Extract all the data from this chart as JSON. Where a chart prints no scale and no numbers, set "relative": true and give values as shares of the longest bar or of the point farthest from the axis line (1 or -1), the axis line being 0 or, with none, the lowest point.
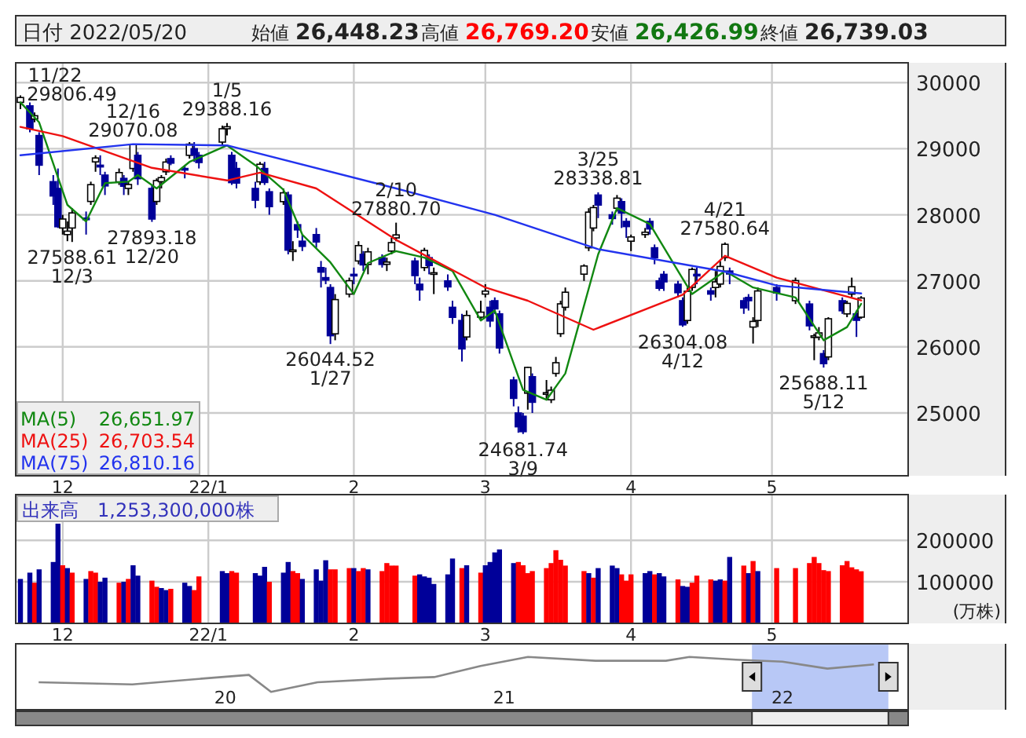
{
  "chart_data": [
    {
      "type": "candlestick",
      "title": "日付 2022/05/20",
      "annotations": [
        "始値",
        "26,448.23",
        "高値",
        "26,769.20",
        "安値",
        "26,426.99",
        "終値",
        "26,739.03",
        "26,651.97",
        "26,703.54",
        "26,810.16",
        {
          "text": "11/22",
          "x": "2021-11-22",
          "y": 29806.49
        },
        {
          "text": "29806.49",
          "x": "2021-11-22",
          "y": 29806.49
        },
        {
          "text": "27588.61",
          "x": "2021-12-03",
          "y": 27588.61
        },
        {
          "text": "12/3",
          "x": "2021-12-03",
          "y": 27588.61
        },
        {
          "text": "12/16",
          "x": "2021-12-16",
          "y": 29070.08
        },
        {
          "text": "29070.08",
          "x": "2021-12-16",
          "y": 29070.08
        },
        {
          "text": "27893.18",
          "x": "2021-12-20",
          "y": 27893.18
        },
        {
          "text": "12/20",
          "x": "2021-12-20",
          "y": 27893.18
        },
        {
          "text": "1/5",
          "x": "2022-01-05",
          "y": 29388.16
        },
        {
          "text": "29388.16",
          "x": "2022-01-05",
          "y": 29388.16
        },
        {
          "text": "26044.52",
          "x": "2022-01-27",
          "y": 26044.52
        },
        {
          "text": "1/27",
          "x": "2022-01-27",
          "y": 26044.52
        },
        {
          "text": "2/10",
          "x": "2022-02-10",
          "y": 27880.7
        },
        {
          "text": "27880.70",
          "x": "2022-02-10",
          "y": 27880.7
        },
        {
          "text": "24681.74",
          "x": "2022-03-09",
          "y": 24681.74
        },
        {
          "text": "3/9",
          "x": "2022-03-09",
          "y": 24681.74
        },
        {
          "text": "3/25",
          "x": "2022-03-25",
          "y": 28338.81
        },
        {
          "text": "28338.81",
          "x": "2022-03-25",
          "y": 28338.81
        },
        {
          "text": "26304.08",
          "x": "2022-04-12",
          "y": 26304.08
        },
        {
          "text": "4/12",
          "x": "2022-04-12",
          "y": 26304.08
        },
        {
          "text": "4/21",
          "x": "2022-04-21",
          "y": 27580.64
        },
        {
          "text": "27580.64",
          "x": "2022-04-21",
          "y": 27580.64
        },
        {
          "text": "25688.11",
          "x": "2022-05-12",
          "y": 25688.11
        },
        {
          "text": "5/12",
          "x": "2022-05-12",
          "y": 25688.11
        }
      ],
      "x": [
        "2021-11-22",
        "2021-11-24",
        "2021-11-25",
        "2021-11-26",
        "2021-11-29",
        "2021-11-30",
        "2021-12-01",
        "2021-12-02",
        "2021-12-03",
        "2021-12-06",
        "2021-12-07",
        "2021-12-08",
        "2021-12-09",
        "2021-12-10",
        "2021-12-13",
        "2021-12-14",
        "2021-12-15",
        "2021-12-16",
        "2021-12-17",
        "2021-12-20",
        "2021-12-21",
        "2021-12-22",
        "2021-12-23",
        "2021-12-24",
        "2021-12-27",
        "2021-12-28",
        "2021-12-29",
        "2021-12-30",
        "2022-01-04",
        "2022-01-05",
        "2022-01-06",
        "2022-01-07",
        "2022-01-11",
        "2022-01-12",
        "2022-01-13",
        "2022-01-14",
        "2022-01-17",
        "2022-01-18",
        "2022-01-19",
        "2022-01-20",
        "2022-01-21",
        "2022-01-24",
        "2022-01-25",
        "2022-01-26",
        "2022-01-27",
        "2022-01-28",
        "2022-01-31",
        "2022-02-01",
        "2022-02-02",
        "2022-02-03",
        "2022-02-04",
        "2022-02-07",
        "2022-02-08",
        "2022-02-09",
        "2022-02-10",
        "2022-02-14",
        "2022-02-15",
        "2022-02-16",
        "2022-02-17",
        "2022-02-18",
        "2022-02-21",
        "2022-02-22",
        "2022-02-24",
        "2022-02-25",
        "2022-02-28",
        "2022-03-01",
        "2022-03-02",
        "2022-03-03",
        "2022-03-04",
        "2022-03-07",
        "2022-03-08",
        "2022-03-09",
        "2022-03-10",
        "2022-03-11",
        "2022-03-14",
        "2022-03-15",
        "2022-03-16",
        "2022-03-17",
        "2022-03-18",
        "2022-03-22",
        "2022-03-23",
        "2022-03-24",
        "2022-03-25",
        "2022-03-28",
        "2022-03-29",
        "2022-03-30",
        "2022-03-31",
        "2022-04-01",
        "2022-04-04",
        "2022-04-05",
        "2022-04-06",
        "2022-04-07",
        "2022-04-08",
        "2022-04-11",
        "2022-04-12",
        "2022-04-13",
        "2022-04-14",
        "2022-04-15",
        "2022-04-18",
        "2022-04-19",
        "2022-04-20",
        "2022-04-21",
        "2022-04-22",
        "2022-04-25",
        "2022-04-26",
        "2022-04-27",
        "2022-04-28",
        "2022-05-02",
        "2022-05-06",
        "2022-05-09",
        "2022-05-10",
        "2022-05-11",
        "2022-05-12",
        "2022-05-13",
        "2022-05-16",
        "2022-05-17",
        "2022-05-18",
        "2022-05-19",
        "2022-05-20"
      ],
      "ohlc": [
        [
          29700,
          29806.49,
          29600,
          29774
        ],
        [
          29650,
          29700,
          29250,
          29302
        ],
        [
          29450,
          29550,
          29400,
          29499
        ],
        [
          29200,
          29250,
          28600,
          28751
        ],
        [
          28500,
          28600,
          28150,
          28283
        ],
        [
          28400,
          28700,
          27800,
          27821
        ],
        [
          27800,
          28000,
          27700,
          27935
        ],
        [
          27700,
          27900,
          27600,
          27753
        ],
        [
          27800,
          28100,
          27588.61,
          28029
        ],
        [
          27950,
          28050,
          27700,
          27927
        ],
        [
          28200,
          28500,
          28150,
          28455
        ],
        [
          28800,
          28900,
          28650,
          28860
        ],
        [
          28750,
          28900,
          28600,
          28725
        ],
        [
          28600,
          28650,
          28300,
          28437
        ],
        [
          28500,
          28700,
          28450,
          28640
        ],
        [
          28550,
          28600,
          28300,
          28432
        ],
        [
          28400,
          28500,
          28300,
          28459
        ],
        [
          28700,
          29070.08,
          28650,
          29066
        ],
        [
          28900,
          28950,
          28450,
          28545
        ],
        [
          28400,
          28450,
          27893.18,
          27937
        ],
        [
          28200,
          28550,
          28150,
          28517
        ],
        [
          28500,
          28600,
          28400,
          28562
        ],
        [
          28650,
          28850,
          28600,
          28798
        ],
        [
          28850,
          28900,
          28750,
          28782
        ],
        [
          28700,
          28750,
          28550,
          28676
        ],
        [
          28900,
          29100,
          28850,
          29069
        ],
        [
          29000,
          29100,
          28800,
          28906
        ],
        [
          28900,
          28950,
          28700,
          28791
        ],
        [
          29100,
          29350,
          29050,
          29301
        ],
        [
          29300,
          29388.16,
          29200,
          29332
        ],
        [
          28900,
          28950,
          28450,
          28487
        ],
        [
          28700,
          28800,
          28400,
          28478
        ],
        [
          28400,
          28500,
          28100,
          28222
        ],
        [
          28500,
          28800,
          28450,
          28765
        ],
        [
          28700,
          28800,
          28450,
          28489
        ],
        [
          28350,
          28400,
          28000,
          28124
        ],
        [
          28200,
          28400,
          28150,
          28333
        ],
        [
          28300,
          28350,
          27400,
          27467
        ],
        [
          27450,
          27600,
          27300,
          27467
        ],
        [
          27850,
          27900,
          27650,
          27772
        ],
        [
          27600,
          27700,
          27450,
          27522
        ],
        [
          27700,
          27800,
          27500,
          27588
        ],
        [
          27200,
          27300,
          26900,
          27131
        ],
        [
          27050,
          27200,
          26950,
          27011
        ],
        [
          26900,
          26950,
          26044.52,
          26170
        ],
        [
          26200,
          26800,
          26100,
          26717
        ],
        [
          26800,
          27050,
          26750,
          27001
        ],
        [
          27100,
          27200,
          26950,
          27078
        ],
        [
          27300,
          27600,
          27250,
          27533
        ],
        [
          27400,
          27450,
          27150,
          27241
        ],
        [
          27250,
          27500,
          27100,
          27439
        ],
        [
          27350,
          27400,
          27200,
          27248
        ],
        [
          27250,
          27350,
          27150,
          27284
        ],
        [
          27450,
          27650,
          27400,
          27579
        ],
        [
          27650,
          27880.7,
          27600,
          27696
        ],
        [
          27300,
          27350,
          26950,
          27079
        ],
        [
          26950,
          27050,
          26700,
          26865
        ],
        [
          27200,
          27500,
          27150,
          27460
        ],
        [
          27350,
          27400,
          27100,
          27232
        ],
        [
          27100,
          27200,
          26800,
          27122
        ],
        [
          27000,
          27100,
          26850,
          26910
        ],
        [
          26600,
          26700,
          26350,
          26449
        ],
        [
          26400,
          26500,
          25780,
          25970
        ],
        [
          26150,
          26550,
          26100,
          26476
        ],
        [
          26450,
          26700,
          26400,
          26526
        ],
        [
          26800,
          26950,
          26750,
          26844
        ],
        [
          26600,
          26700,
          26300,
          26393
        ],
        [
          26700,
          26750,
          26500,
          26577
        ],
        [
          26500,
          26550,
          25900,
          25985
        ],
        [
          25500,
          25550,
          25100,
          25221
        ],
        [
          25000,
          25100,
          24700,
          24790
        ],
        [
          24950,
          25000,
          24681.74,
          24717
        ],
        [
          25300,
          25700,
          25050,
          25690
        ],
        [
          25550,
          25600,
          25000,
          25162
        ],
        [
          25300,
          25500,
          25200,
          25307
        ],
        [
          25200,
          25400,
          25150,
          25346
        ],
        [
          25600,
          25850,
          25550,
          25762
        ],
        [
          26200,
          26700,
          26150,
          26652
        ],
        [
          26600,
          26900,
          26550,
          26827
        ],
        [
          27100,
          27250,
          27000,
          27224
        ],
        [
          27500,
          28100,
          27450,
          28040
        ],
        [
          27800,
          28150,
          27750,
          28110
        ],
        [
          28300,
          28338.81,
          27950,
          28149
        ],
        [
          28000,
          28050,
          27850,
          27943
        ],
        [
          28100,
          28300,
          28050,
          28252
        ],
        [
          28200,
          28250,
          27800,
          28027
        ],
        [
          27900,
          27950,
          27650,
          27821
        ],
        [
          27600,
          27700,
          27450,
          27665
        ],
        [
          27700,
          27800,
          27650,
          27736
        ],
        [
          27900,
          27950,
          27700,
          27787
        ],
        [
          27500,
          27550,
          27250,
          27350
        ],
        [
          27000,
          27050,
          26850,
          26888
        ],
        [
          27100,
          27150,
          26850,
          26985
        ],
        [
          26950,
          27000,
          26750,
          26821
        ],
        [
          26700,
          26750,
          26304.08,
          26335
        ],
        [
          26400,
          26900,
          26350,
          26843
        ],
        [
          26900,
          27200,
          26850,
          27172
        ],
        [
          27100,
          27200,
          26950,
          27093
        ],
        [
          26850,
          26900,
          26700,
          26800
        ],
        [
          26900,
          27150,
          26750,
          26985
        ],
        [
          26950,
          27300,
          26900,
          27217
        ],
        [
          27350,
          27580.64,
          27300,
          27553
        ],
        [
          27150,
          27200,
          26950,
          27105
        ],
        [
          26700,
          26750,
          26500,
          26590
        ],
        [
          26750,
          26800,
          26550,
          26700
        ],
        [
          26300,
          26450,
          26050,
          26386
        ],
        [
          26400,
          26900,
          26300,
          26847
        ],
        [
          26900,
          26950,
          26700,
          26818
        ],
        [
          26700,
          27050,
          26650,
          27003
        ],
        [
          26650,
          26700,
          26250,
          26319
        ],
        [
          26150,
          26200,
          25800,
          26167
        ],
        [
          26150,
          26300,
          26100,
          26213
        ],
        [
          25900,
          25950,
          25688.11,
          25748
        ],
        [
          25850,
          26450,
          25800,
          26427
        ],
        [
          26700,
          26750,
          26500,
          26547
        ],
        [
          26500,
          26700,
          26450,
          26659
        ],
        [
          26800,
          27050,
          26750,
          26911
        ],
        [
          26500,
          26550,
          26150,
          26402
        ],
        [
          26448.23,
          26769.2,
          26426.99,
          26739.03
        ]
      ],
      "series": [
        {
          "type": "line",
          "name": "MA(5)",
          "color": "#118811",
          "x": [
            "2021-11-22",
            "2021-11-26",
            "2021-12-02",
            "2021-12-06",
            "2021-12-10",
            "2021-12-15",
            "2021-12-17",
            "2021-12-21",
            "2021-12-28",
            "2022-01-05",
            "2022-01-11",
            "2022-01-17",
            "2022-01-21",
            "2022-01-27",
            "2022-02-01",
            "2022-02-04",
            "2022-02-10",
            "2022-02-16",
            "2022-02-22",
            "2022-02-28",
            "2022-03-03",
            "2022-03-09",
            "2022-03-14",
            "2022-03-18",
            "2022-03-25",
            "2022-03-29",
            "2022-04-05",
            "2022-04-11",
            "2022-04-14",
            "2022-04-21",
            "2022-04-27",
            "2022-05-06",
            "2022-05-12",
            "2022-05-17",
            "2022-05-20"
          ],
          "values": [
            29700,
            29400,
            28150,
            27900,
            28480,
            28500,
            28600,
            28400,
            28800,
            29050,
            28750,
            28380,
            27700,
            27280,
            26800,
            27270,
            27450,
            27350,
            27150,
            26400,
            26550,
            25350,
            25200,
            25600,
            27400,
            28100,
            27860,
            27150,
            26800,
            27150,
            26900,
            26750,
            26100,
            26300,
            26651.97
          ]
        },
        {
          "type": "line",
          "name": "MA(25)",
          "color": "#ee1111",
          "x": [
            "2021-11-22",
            "2021-12-01",
            "2021-12-20",
            "2022-01-05",
            "2022-01-12",
            "2022-01-24",
            "2022-02-10",
            "2022-03-01",
            "2022-03-10",
            "2022-03-24",
            "2022-04-12",
            "2022-04-21",
            "2022-05-02",
            "2022-05-20"
          ],
          "values": [
            29330,
            29190,
            28710,
            28520,
            28640,
            28400,
            27620,
            26900,
            26700,
            26260,
            26790,
            27380,
            27050,
            26703.54
          ]
        },
        {
          "type": "line",
          "name": "MA(75)",
          "color": "#2233ee",
          "x": [
            "2021-11-22",
            "2021-12-16",
            "2022-01-05",
            "2022-02-10",
            "2022-03-03",
            "2022-03-25",
            "2022-04-21",
            "2022-05-02",
            "2022-05-20"
          ],
          "values": [
            28900,
            29070,
            29050,
            28400,
            28000,
            27480,
            27140,
            26930,
            26810.16
          ]
        }
      ],
      "xlim": [
        "2021-11-21",
        "2022-05-30"
      ],
      "ylim": [
        24050,
        30300
      ],
      "xticks": [
        {
          "value": "2021-12-01",
          "label": "12"
        },
        {
          "value": "2022-01-01",
          "label": "22/1"
        },
        {
          "value": "2022-02-01",
          "label": "2"
        },
        {
          "value": "2022-03-01",
          "label": "3"
        },
        {
          "value": "2022-04-01",
          "label": "4"
        },
        {
          "value": "2022-05-01",
          "label": "5"
        }
      ],
      "yticks": [
        25000,
        26000,
        27000,
        28000,
        29000,
        30000
      ],
      "grid": true,
      "legend": "bottom left"
    },
    {
      "type": "bar",
      "title": "出来高　1,253,300,000株",
      "ylabel": "(万株)",
      "x": [
        "2021-11-22",
        "2021-11-24",
        "2021-11-25",
        "2021-11-26",
        "2021-11-29",
        "2021-11-30",
        "2021-12-01",
        "2021-12-02",
        "2021-12-03",
        "2021-12-06",
        "2021-12-07",
        "2021-12-08",
        "2021-12-09",
        "2021-12-10",
        "2021-12-13",
        "2021-12-14",
        "2021-12-15",
        "2021-12-16",
        "2021-12-17",
        "2021-12-20",
        "2021-12-21",
        "2021-12-22",
        "2021-12-23",
        "2021-12-24",
        "2021-12-27",
        "2021-12-28",
        "2021-12-29",
        "2021-12-30",
        "2022-01-04",
        "2022-01-05",
        "2022-01-06",
        "2022-01-07",
        "2022-01-11",
        "2022-01-12",
        "2022-01-13",
        "2022-01-14",
        "2022-01-17",
        "2022-01-18",
        "2022-01-19",
        "2022-01-20",
        "2022-01-21",
        "2022-01-24",
        "2022-01-25",
        "2022-01-26",
        "2022-01-27",
        "2022-01-28",
        "2022-01-31",
        "2022-02-01",
        "2022-02-02",
        "2022-02-03",
        "2022-02-04",
        "2022-02-07",
        "2022-02-08",
        "2022-02-09",
        "2022-02-10",
        "2022-02-14",
        "2022-02-15",
        "2022-02-16",
        "2022-02-17",
        "2022-02-18",
        "2022-02-21",
        "2022-02-22",
        "2022-02-24",
        "2022-02-25",
        "2022-02-28",
        "2022-03-01",
        "2022-03-02",
        "2022-03-03",
        "2022-03-04",
        "2022-03-07",
        "2022-03-08",
        "2022-03-09",
        "2022-03-10",
        "2022-03-11",
        "2022-03-14",
        "2022-03-15",
        "2022-03-16",
        "2022-03-17",
        "2022-03-18",
        "2022-03-22",
        "2022-03-23",
        "2022-03-24",
        "2022-03-25",
        "2022-03-28",
        "2022-03-29",
        "2022-03-30",
        "2022-03-31",
        "2022-04-01",
        "2022-04-04",
        "2022-04-05",
        "2022-04-06",
        "2022-04-07",
        "2022-04-08",
        "2022-04-11",
        "2022-04-12",
        "2022-04-13",
        "2022-04-14",
        "2022-04-15",
        "2022-04-18",
        "2022-04-19",
        "2022-04-20",
        "2022-04-21",
        "2022-04-22",
        "2022-04-25",
        "2022-04-26",
        "2022-04-27",
        "2022-04-28",
        "2022-05-02",
        "2022-05-06",
        "2022-05-09",
        "2022-05-10",
        "2022-05-11",
        "2022-05-12",
        "2022-05-13",
        "2022-05-16",
        "2022-05-17",
        "2022-05-18",
        "2022-05-19",
        "2022-05-20"
      ],
      "values": [
        107000,
        122000,
        98000,
        130000,
        148000,
        240000,
        140000,
        133000,
        122000,
        107000,
        126000,
        122000,
        100000,
        110000,
        98000,
        100000,
        107000,
        140000,
        115000,
        103000,
        88000,
        85000,
        80000,
        83000,
        98000,
        90000,
        80000,
        113000,
        126000,
        121000,
        126000,
        122000,
        121000,
        115000,
        136000,
        100000,
        122000,
        148000,
        126000,
        121000,
        107000,
        130000,
        103000,
        152000,
        130000,
        130000,
        133000,
        133000,
        126000,
        133000,
        130000,
        126000,
        145000,
        139000,
        139000,
        115000,
        118000,
        113000,
        110000,
        95000,
        118000,
        156000,
        133000,
        140000,
        122000,
        140000,
        148000,
        171000,
        178000,
        145000,
        148000,
        140000,
        121000,
        126000,
        133000,
        145000,
        176000,
        153000,
        139000,
        126000,
        121000,
        110000,
        133000,
        139000,
        133000,
        118000,
        103000,
        118000,
        121000,
        126000,
        118000,
        121000,
        113000,
        106000,
        90000,
        88000,
        98000,
        115000,
        106000,
        103000,
        106000,
        103000,
        160000,
        139000,
        121000,
        150000,
        126000,
        133000,
        133000,
        145000,
        160000,
        145000,
        128000,
        126000,
        140000,
        150000,
        135000,
        130000,
        125330
      ],
      "colors": [
        "#000099",
        "#000099",
        "#ff0000",
        "#000099",
        "#000099",
        "#000099",
        "#ff0000",
        "#000099",
        "#ff0000",
        "#000099",
        "#ff0000",
        "#ff0000",
        "#000099",
        "#000099",
        "#ff0000",
        "#000099",
        "#ff0000",
        "#000099",
        "#000099",
        "#ff0000",
        "#ff0000",
        "#000099",
        "#000099",
        "#ff0000",
        "#000099",
        "#000099",
        "#ff0000",
        "#ff0000",
        "#000099",
        "#000099",
        "#ff0000",
        "#ff0000",
        "#000099",
        "#000099",
        "#000099",
        "#ff0000",
        "#000099",
        "#000099",
        "#ff0000",
        "#ff0000",
        "#000099",
        "#000099",
        "#000099",
        "#000099",
        "#ff0000",
        "#ff0000",
        "#ff0000",
        "#000099",
        "#ff0000",
        "#ff0000",
        "#000099",
        "#ff0000",
        "#ff0000",
        "#ff0000",
        "#ff0000",
        "#ff0000",
        "#000099",
        "#000099",
        "#000099",
        "#000099",
        "#000099",
        "#000099",
        "#ff0000",
        "#000099",
        "#ff0000",
        "#000099",
        "#000099",
        "#000099",
        "#000099",
        "#000099",
        "#ff0000",
        "#ff0000",
        "#ff0000",
        "#ff0000",
        "#ff0000",
        "#ff0000",
        "#ff0000",
        "#ff0000",
        "#ff0000",
        "#ff0000",
        "#000099",
        "#ff0000",
        "#000099",
        "#000099",
        "#000099",
        "#ff0000",
        "#ff0000",
        "#ff0000",
        "#000099",
        "#000099",
        "#ff0000",
        "#000099",
        "#000099",
        "#ff0000",
        "#000099",
        "#000099",
        "#ff0000",
        "#ff0000",
        "#ff0000",
        "#000099",
        "#000099",
        "#ff0000",
        "#000099",
        "#ff0000",
        "#000099",
        "#ff0000",
        "#000099",
        "#ff0000",
        "#ff0000",
        "#ff0000",
        "#ff0000",
        "#ff0000",
        "#ff0000",
        "#ff0000",
        "#ff0000",
        "#ff0000",
        "#ff0000",
        "#ff0000",
        "#ff0000"
      ],
      "xlim": [
        "2021-11-21",
        "2022-05-30"
      ],
      "ylim": [
        0,
        310000
      ],
      "xticks": [
        {
          "value": "2021-12-01",
          "label": "12"
        },
        {
          "value": "2022-01-01",
          "label": "22/1"
        },
        {
          "value": "2022-02-01",
          "label": "2"
        },
        {
          "value": "2022-03-01",
          "label": "3"
        },
        {
          "value": "2022-04-01",
          "label": "4"
        },
        {
          "value": "2022-05-01",
          "label": "5"
        }
      ],
      "yticks": [
        100000,
        200000
      ],
      "grid": true
    },
    {
      "type": "line",
      "relative": true,
      "color": "#888888",
      "x": [
        "2019-05",
        "2019-09",
        "2019-12",
        "2020-02",
        "2020-03",
        "2020-05",
        "2020-08",
        "2020-10",
        "2020-12",
        "2021-02",
        "2021-05",
        "2021-08",
        "2021-09",
        "2021-11",
        "2022-01",
        "2022-03",
        "2022-05"
      ],
      "values": [
        0.52,
        0.48,
        0.59,
        0.66,
        0.34,
        0.52,
        0.59,
        0.62,
        0.83,
        1,
        0.93,
        0.93,
        1,
        0.95,
        0.91,
        0.78,
        0.86
      ],
      "xlim": [
        "2019-04-01",
        "2022-06-15"
      ],
      "xticks": [
        {
          "value": "2020-01",
          "label": "20"
        },
        {
          "value": "2021-01",
          "label": "21"
        },
        {
          "value": "2022-01",
          "label": "22"
        }
      ],
      "bands": [
        {
          "axis": "x",
          "from": "2021-11-22",
          "to": "2022-05-20",
          "color": "#b8c8f6"
        }
      ],
      "tick_labels": "x"
    }
  ]
}
